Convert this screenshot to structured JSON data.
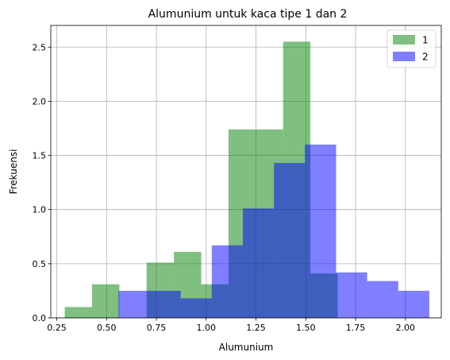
{
  "chart_data": {
    "type": "histogram",
    "title": "Alumunium untuk kaca tipe 1 dan 2",
    "xlabel": "Alumunium",
    "ylabel": "Frekuensi",
    "xlim": [
      0.22,
      2.18
    ],
    "ylim": [
      0,
      2.7
    ],
    "xticks": [
      0.25,
      0.5,
      0.75,
      1.0,
      1.25,
      1.5,
      1.75,
      2.0
    ],
    "xtick_labels": [
      "0.25",
      "0.50",
      "0.75",
      "1.00",
      "1.25",
      "1.50",
      "1.75",
      "2.00"
    ],
    "yticks": [
      0.0,
      0.5,
      1.0,
      1.5,
      2.0,
      2.5
    ],
    "ytick_labels": [
      "0.0",
      "0.5",
      "1.0",
      "1.5",
      "2.0",
      "2.5"
    ],
    "grid": true,
    "legend_position": "top-right",
    "series": [
      {
        "name": "1",
        "color": "#008000",
        "alpha": 0.5,
        "bin_edges": [
          0.29,
          0.427,
          0.564,
          0.701,
          0.838,
          0.975,
          1.112,
          1.249,
          1.386,
          1.523,
          1.66
        ],
        "values": [
          0.1,
          0.31,
          0.0,
          0.51,
          0.61,
          0.31,
          1.74,
          1.74,
          2.55,
          0.41
        ]
      },
      {
        "name": "2",
        "color": "#0000ff",
        "alpha": 0.5,
        "bin_edges": [
          0.56,
          0.716,
          0.872,
          1.028,
          1.184,
          1.34,
          1.496,
          1.652,
          1.808,
          1.964,
          2.12
        ],
        "values": [
          0.25,
          0.25,
          0.18,
          0.67,
          1.01,
          1.43,
          1.6,
          0.42,
          0.34,
          0.25
        ]
      }
    ]
  }
}
